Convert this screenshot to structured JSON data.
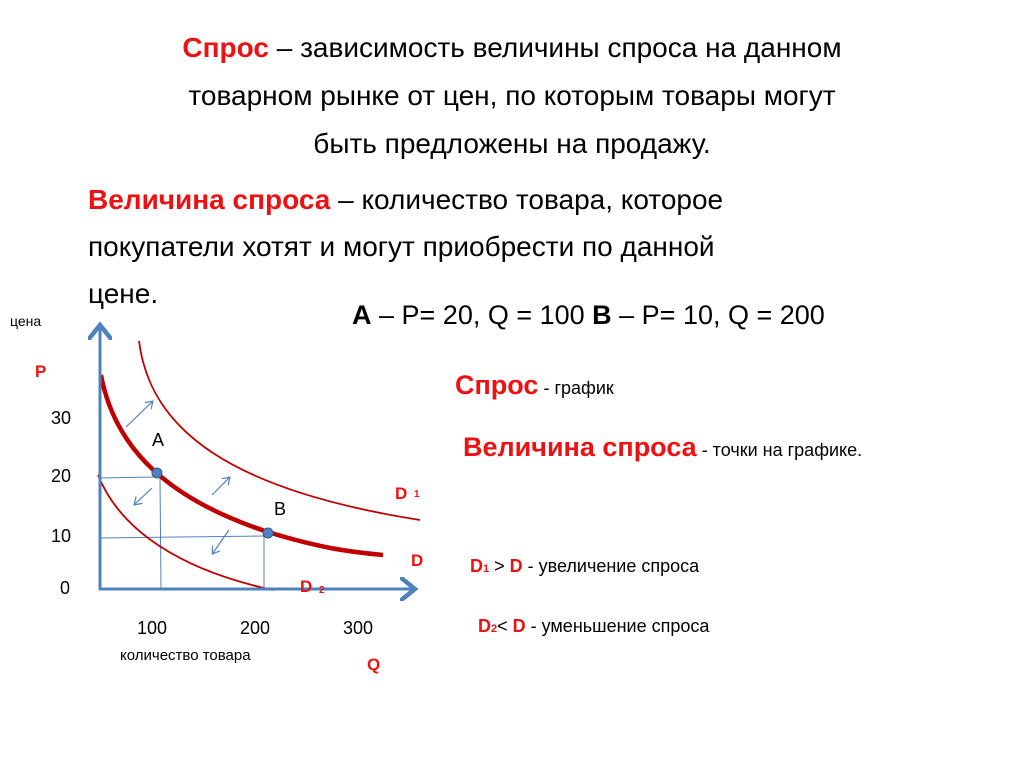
{
  "definition_demand": {
    "term": "Спрос",
    "text_line1": " – зависимость величины спроса на данном",
    "text_line2": "товарном рынке от цен, по которым товары могут",
    "text_line3": "быть предложены на продажу."
  },
  "definition_quantity": {
    "term": "Величина спроса",
    "text_line1": " – количество товара, которое",
    "text_line2": "покупатели хотят и могут приобрести по данной",
    "text_line3": "цене."
  },
  "points_summary": {
    "a_label": "A",
    "a_text": " – P= 20, Q = 100 ",
    "b_label": "B",
    "b_text": " – P= 10, Q = 200"
  },
  "notes": {
    "demand_term": "Спрос",
    "demand_desc": " - график",
    "quantity_term": "Величина спроса",
    "quantity_desc": " - точки на графике.",
    "increase": {
      "left": "D",
      "left_sub": "1",
      "op": " > ",
      "right": "D",
      "desc": " - увеличение спроса"
    },
    "decrease": {
      "left": "D",
      "left_sub": "2",
      "op": "< ",
      "right": "D",
      "desc": " - уменьшение спроса"
    }
  },
  "diagram": {
    "y_axis_title": "цена",
    "y_axis_symbol": "P",
    "x_axis_title": "количество товара",
    "x_axis_symbol": "Q",
    "y_ticks": [
      "30",
      "20",
      "10",
      "0"
    ],
    "x_ticks": [
      "100",
      "200",
      "300"
    ],
    "point_a": "A",
    "point_b": "B",
    "curve_d": "D",
    "curve_d1": "D",
    "curve_d1_sub": "1",
    "curve_d2": "D",
    "curve_d2_sub": "2",
    "colors": {
      "axis": "#4f81bd",
      "curve": "#c00000",
      "label": "#ee1111"
    }
  }
}
